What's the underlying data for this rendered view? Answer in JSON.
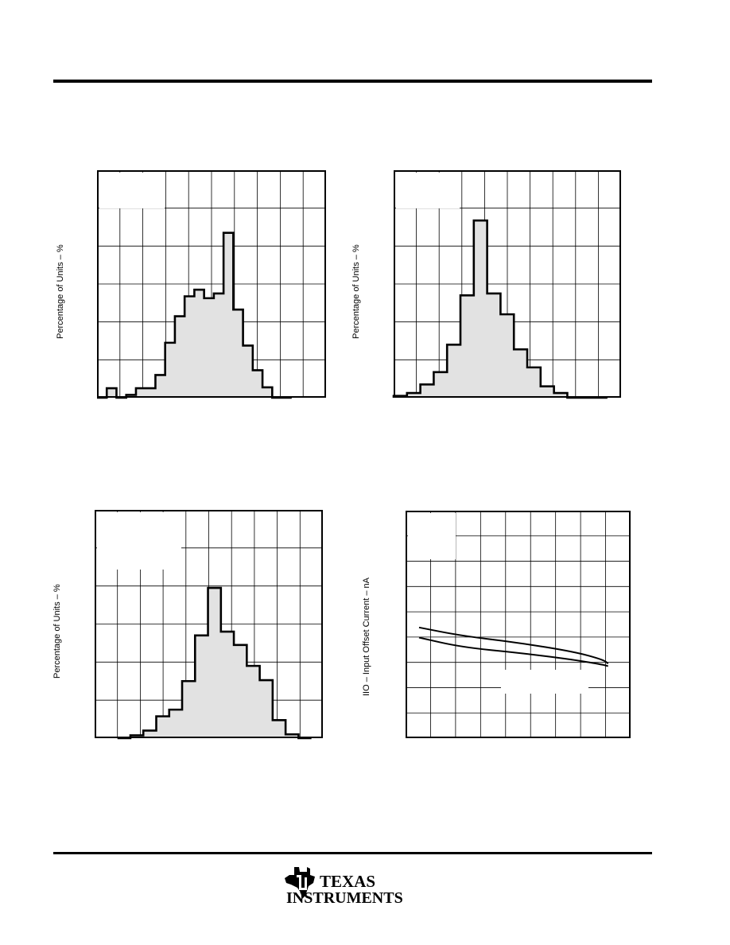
{
  "page": {
    "brand_line1": "Texas",
    "brand_line2": "Instruments"
  },
  "chart_data": [
    {
      "type": "bar",
      "ylabel": "Percentage of Units – %",
      "grid": true,
      "values": [
        0,
        1,
        0,
        0.3,
        1,
        1,
        2.4,
        5.8,
        8.6,
        10.7,
        11.4,
        10.5,
        11.0,
        17.4,
        9.3,
        5.5,
        2.9,
        1.1,
        0,
        0
      ]
    },
    {
      "type": "bar",
      "ylabel": "Percentage of Units – %",
      "grid": true,
      "values": [
        0.2,
        0.5,
        1.4,
        2.7,
        5.6,
        10.8,
        18.7,
        11.0,
        8.8,
        5.1,
        3.2,
        1.2,
        0.5,
        0.0,
        0.0,
        0.0
      ]
    },
    {
      "type": "bar",
      "ylabel": "Percentage of Units – %",
      "grid": true,
      "values": [
        0,
        0.3,
        0.8,
        2.3,
        3.0,
        6.0,
        10.8,
        15.8,
        11.2,
        9.8,
        7.6,
        6.1,
        1.9,
        0.4,
        0
      ]
    },
    {
      "type": "line",
      "ylabel": "IIO – Input Offset Current – nA",
      "grid": true,
      "series": [
        {
          "values": [
            [
              0.06,
              4.38
            ],
            [
              0.25,
              4.05
            ],
            [
              0.5,
              3.78
            ],
            [
              0.75,
              3.42
            ],
            [
              0.88,
              3.1
            ],
            [
              0.9,
              2.95
            ]
          ]
        },
        {
          "values": [
            [
              0.06,
              3.98
            ],
            [
              0.25,
              3.6
            ],
            [
              0.5,
              3.38
            ],
            [
              0.75,
              3.1
            ],
            [
              0.88,
              2.9
            ],
            [
              0.9,
              2.85
            ]
          ]
        }
      ]
    }
  ]
}
